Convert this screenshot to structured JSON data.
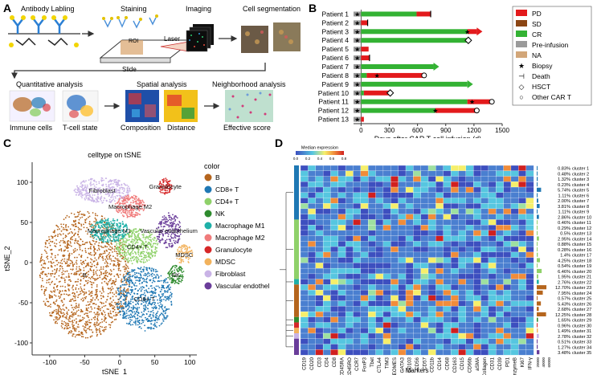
{
  "panels": {
    "A": {
      "letter": "A",
      "steps": [
        {
          "label": "Antibody Labling"
        },
        {
          "label": "Staining"
        },
        {
          "label": "Imaging"
        },
        {
          "label": "Cell segmentation"
        }
      ],
      "roi_label": "ROI",
      "laser_label": "Laser",
      "slide_label": "Slide",
      "analyses": [
        {
          "label": "Quantitative analysis",
          "subs": [
            "Immune cells",
            "T-cell state"
          ]
        },
        {
          "label": "Spatial analysis",
          "subs": [
            "Composition",
            "Distance"
          ]
        },
        {
          "label": "Neighborhood analysis",
          "subs": [
            "Effective score"
          ]
        }
      ]
    },
    "B": {
      "letter": "B",
      "xlabel": "Days after CAR T-cell infusion (d)",
      "legend": [
        {
          "name": "PD",
          "color": "#e31a1c"
        },
        {
          "name": "SD",
          "color": "#8b4513"
        },
        {
          "name": "CR",
          "color": "#33b233"
        },
        {
          "name": "Pre-infusion",
          "color": "#9a9a9a"
        },
        {
          "name": "NA",
          "color": "#d2a679"
        },
        {
          "name": "Biopsy",
          "symbol": "★"
        },
        {
          "name": "Death",
          "symbol": "⊣"
        },
        {
          "name": "HSCT",
          "symbol": "◇"
        },
        {
          "name": "Other CAR T",
          "symbol": "○"
        }
      ]
    },
    "C": {
      "letter": "C",
      "legend_title": "color",
      "legend": [
        {
          "name": "B",
          "color": "#b5651d"
        },
        {
          "name": "CD8+ T",
          "color": "#1f78b4"
        },
        {
          "name": "CD4+ T",
          "color": "#8fd16a"
        },
        {
          "name": "NK",
          "color": "#2e8b2e"
        },
        {
          "name": "Macrophage M1",
          "color": "#1fb0a8"
        },
        {
          "name": "Macrophage M2",
          "color": "#f07b7b"
        },
        {
          "name": "Granulocyte",
          "color": "#d62728"
        },
        {
          "name": "MDSC",
          "color": "#f2b25c"
        },
        {
          "name": "Fibroblast",
          "color": "#c9b3e6"
        },
        {
          "name": "Vascular endothelium",
          "color": "#6a3d9a"
        }
      ],
      "cluster_labels": [
        "Granulocyte",
        "Fibroblast",
        "Macrophage M2",
        "Macrophage M1",
        "CD4+ T",
        "Vascular endothelium",
        "MDSC",
        "NK",
        "B",
        "CD8+ T"
      ]
    },
    "D": {
      "letter": "D",
      "colorbar_title": "Median expression",
      "colorbar_ticks": [
        "0.0",
        "0.2",
        "0.4",
        "0.6",
        "0.8"
      ],
      "xlabel": "Markers",
      "ncells_label": "n_cells",
      "ncells_ticks": [
        "20000",
        "40000",
        "60000"
      ],
      "markers": [
        "CD19",
        "CD20",
        "CD3",
        "CD4",
        "CD8",
        "CD45RA",
        "CD45RO",
        "CCR7",
        "FoxP3",
        "Tbet",
        "CTLA4",
        "TIM3",
        "EOMES",
        "GATA3",
        "CD103",
        "CD56",
        "CD57",
        "CD11b",
        "CD14",
        "CD68",
        "CD163",
        "CD15",
        "CD66b",
        "aSMA",
        "Collagen",
        "CD31",
        "CD39",
        "PD1",
        "GranzymeB",
        "Ki67",
        "IFN-γ"
      ],
      "clusters": [
        {
          "pct": "0.83%",
          "name": "cluster 1"
        },
        {
          "pct": "0.48%",
          "name": "cluster 2"
        },
        {
          "pct": "1.32%",
          "name": "cluster 3"
        },
        {
          "pct": "0.23%",
          "name": "cluster 4"
        },
        {
          "pct": "5.74%",
          "name": "cluster 5"
        },
        {
          "pct": "1.11%",
          "name": "cluster 6"
        },
        {
          "pct": "2.00%",
          "name": "cluster 7"
        },
        {
          "pct": "3.81%",
          "name": "cluster 8"
        },
        {
          "pct": "1.11%",
          "name": "cluster 9"
        },
        {
          "pct": "2.86%",
          "name": "cluster 10"
        },
        {
          "pct": "0.46%",
          "name": "cluster 11"
        },
        {
          "pct": "0.29%",
          "name": "cluster 12"
        },
        {
          "pct": "0.5%",
          "name": "cluster 13"
        },
        {
          "pct": "2.95%",
          "name": "cluster 14"
        },
        {
          "pct": "0.88%",
          "name": "cluster 15"
        },
        {
          "pct": "0.28%",
          "name": "cluster 16"
        },
        {
          "pct": "1.4%",
          "name": "cluster 17"
        },
        {
          "pct": "4.25%",
          "name": "cluster 18"
        },
        {
          "pct": "0.54%",
          "name": "cluster 19"
        },
        {
          "pct": "6.46%",
          "name": "cluster 20"
        },
        {
          "pct": "1.95%",
          "name": "cluster 21"
        },
        {
          "pct": "2.76%",
          "name": "cluster 22"
        },
        {
          "pct": "12.70%",
          "name": "cluster 23"
        },
        {
          "pct": "7.95%",
          "name": "cluster 24"
        },
        {
          "pct": "0.57%",
          "name": "cluster 25"
        },
        {
          "pct": "5.43%",
          "name": "cluster 26"
        },
        {
          "pct": "2.68%",
          "name": "cluster 27"
        },
        {
          "pct": "12.25%",
          "name": "cluster 28"
        },
        {
          "pct": "1.65%",
          "name": "cluster 29"
        },
        {
          "pct": "0.96%",
          "name": "cluster 30"
        },
        {
          "pct": "1.49%",
          "name": "cluster 31"
        },
        {
          "pct": "2.78%",
          "name": "cluster 32"
        },
        {
          "pct": "0.51%",
          "name": "cluster 33"
        },
        {
          "pct": "1.27%",
          "name": "cluster 34"
        },
        {
          "pct": "3.48%",
          "name": "cluster 35"
        }
      ]
    }
  },
  "chart_data": [
    {
      "type": "bar",
      "panel": "B",
      "orientation": "horizontal",
      "xlabel": "Days after CAR T-cell infusion (d)",
      "xticks": [
        0,
        300,
        600,
        900,
        1200,
        1500
      ],
      "xlim": [
        -80,
        1500
      ],
      "categories": [
        "Patient 1",
        "Patient 2",
        "Patient 3",
        "Patient 4",
        "Patient 5",
        "Patient 6",
        "Patient 7",
        "Patient 8",
        "Patient 9",
        "Patient 10",
        "Patient 11",
        "Patient 12",
        "Patient 13"
      ],
      "segments": [
        [
          {
            "status": "CR",
            "start": 0,
            "end": 590
          },
          {
            "status": "PD",
            "start": 590,
            "end": 740
          }
        ],
        [
          {
            "status": "PD",
            "start": 0,
            "end": 70
          }
        ],
        [
          {
            "status": "CR",
            "start": 0,
            "end": 1130
          },
          {
            "status": "PD",
            "start": 1130,
            "end": 1230
          }
        ],
        [
          {
            "status": "CR",
            "start": 0,
            "end": 1140
          }
        ],
        [
          {
            "status": "PD",
            "start": 0,
            "end": 80
          }
        ],
        [
          {
            "status": "PD",
            "start": 0,
            "end": 90
          }
        ],
        [
          {
            "status": "CR",
            "start": 0,
            "end": 770
          }
        ],
        [
          {
            "status": "CR",
            "start": 0,
            "end": 60
          },
          {
            "status": "PD",
            "start": 60,
            "end": 670
          }
        ],
        [
          {
            "status": "CR",
            "start": 0,
            "end": 1130
          }
        ],
        [
          {
            "status": "CR",
            "start": 0,
            "end": 30
          },
          {
            "status": "PD",
            "start": 30,
            "end": 310
          }
        ],
        [
          {
            "status": "CR",
            "start": 0,
            "end": 1130
          },
          {
            "status": "PD",
            "start": 1130,
            "end": 1390
          }
        ],
        [
          {
            "status": "CR",
            "start": 0,
            "end": 790
          },
          {
            "status": "PD",
            "start": 790,
            "end": 1230
          }
        ],
        [
          {
            "status": "PD",
            "start": 0,
            "end": 30
          }
        ]
      ],
      "pre_infusion": true,
      "markers": [
        {
          "patient": "Patient 1",
          "type": "Biopsy",
          "x": -40
        },
        {
          "patient": "Patient 1",
          "type": "Death",
          "x": 740
        },
        {
          "patient": "Patient 2",
          "type": "Biopsy",
          "x": -40
        },
        {
          "patient": "Patient 2",
          "type": "Death",
          "x": 70
        },
        {
          "patient": "Patient 3",
          "type": "Biopsy",
          "x": -40
        },
        {
          "patient": "Patient 3",
          "type": "Biopsy",
          "x": 1130
        },
        {
          "patient": "Patient 4",
          "type": "Biopsy",
          "x": -40
        },
        {
          "patient": "Patient 4",
          "type": "HSCT",
          "x": 1140
        },
        {
          "patient": "Patient 5",
          "type": "Biopsy",
          "x": -40
        },
        {
          "patient": "Patient 6",
          "type": "Biopsy",
          "x": -40
        },
        {
          "patient": "Patient 6",
          "type": "Death",
          "x": 90
        },
        {
          "patient": "Patient 7",
          "type": "Biopsy",
          "x": -40
        },
        {
          "patient": "Patient 8",
          "type": "Biopsy",
          "x": -40
        },
        {
          "patient": "Patient 8",
          "type": "Biopsy",
          "x": 170
        },
        {
          "patient": "Patient 8",
          "type": "Other CAR T",
          "x": 670
        },
        {
          "patient": "Patient 9",
          "type": "Biopsy",
          "x": -40
        },
        {
          "patient": "Patient 10",
          "type": "Biopsy",
          "x": -40
        },
        {
          "patient": "Patient 10",
          "type": "HSCT",
          "x": 310
        },
        {
          "patient": "Patient 11",
          "type": "Biopsy",
          "x": -40
        },
        {
          "patient": "Patient 11",
          "type": "Biopsy",
          "x": 1180
        },
        {
          "patient": "Patient 11",
          "type": "Other CAR T",
          "x": 1390
        },
        {
          "patient": "Patient 12",
          "type": "Biopsy",
          "x": -40
        },
        {
          "patient": "Patient 12",
          "type": "Biopsy",
          "x": 790
        },
        {
          "patient": "Patient 12",
          "type": "Other CAR T",
          "x": 1230
        },
        {
          "patient": "Patient 13",
          "type": "Biopsy",
          "x": -40
        }
      ],
      "arrows": [
        "Patient 3",
        "Patient 7",
        "Patient 9"
      ]
    },
    {
      "type": "scatter",
      "panel": "C",
      "title": "celltype on tSNE",
      "xlabel": "tSNE_1",
      "ylabel": "tSNE_2",
      "xticks": [
        -100,
        -50,
        0,
        50,
        100
      ],
      "yticks": [
        -100,
        -50,
        0,
        50,
        100
      ],
      "xlim": [
        -125,
        110
      ],
      "ylim": [
        -115,
        125
      ],
      "legend_title": "color",
      "clusters": [
        {
          "name": "B",
          "cx": -50,
          "cy": -15,
          "rx": 65,
          "ry": 80,
          "n": 1500
        },
        {
          "name": "CD8+ T",
          "cx": 35,
          "cy": -45,
          "rx": 40,
          "ry": 40,
          "n": 700
        },
        {
          "name": "CD4+ T",
          "cx": 25,
          "cy": 20,
          "rx": 30,
          "ry": 22,
          "n": 400
        },
        {
          "name": "NK",
          "cx": 80,
          "cy": -15,
          "rx": 12,
          "ry": 12,
          "n": 100
        },
        {
          "name": "Macrophage M1",
          "cx": -15,
          "cy": 40,
          "rx": 28,
          "ry": 15,
          "n": 300
        },
        {
          "name": "Macrophage M2",
          "cx": 15,
          "cy": 70,
          "rx": 22,
          "ry": 14,
          "n": 250
        },
        {
          "name": "Granulocyte",
          "cx": 65,
          "cy": 95,
          "rx": 10,
          "ry": 10,
          "n": 90
        },
        {
          "name": "MDSC",
          "cx": 92,
          "cy": 10,
          "rx": 12,
          "ry": 12,
          "n": 90
        },
        {
          "name": "Fibroblast",
          "cx": -25,
          "cy": 90,
          "rx": 40,
          "ry": 16,
          "n": 350
        },
        {
          "name": "Vascular endothelium",
          "cx": 70,
          "cy": 40,
          "rx": 18,
          "ry": 22,
          "n": 200
        }
      ]
    },
    {
      "type": "heatmap",
      "panel": "D",
      "xlabel": "Markers",
      "colorbar_title": "Median expression",
      "colorbar_range": [
        0,
        0.8
      ],
      "rows": 35,
      "columns": 31,
      "row_groups": [
        {
          "color": "#1f78b4",
          "count": 10
        },
        {
          "color": "#8fd16a",
          "count": 11
        },
        {
          "color": "#1fb0a8",
          "count": 1
        },
        {
          "color": "#b5651d",
          "count": 6
        },
        {
          "color": "#2e8b2e",
          "count": 1
        },
        {
          "color": "#d62728",
          "count": 1
        },
        {
          "color": "#f2b25c",
          "count": 1
        },
        {
          "color": "#c9b3e6",
          "count": 1
        },
        {
          "color": "#6a3d9a",
          "count": 3
        }
      ],
      "n_cells": [
        800,
        480,
        1300,
        230,
        5700,
        1100,
        2000,
        3800,
        1100,
        2860,
        460,
        290,
        500,
        2950,
        880,
        280,
        1400,
        4250,
        540,
        6460,
        1950,
        2760,
        12700,
        7950,
        570,
        5430,
        2680,
        12250,
        1650,
        960,
        1490,
        2780,
        510,
        1270,
        3480
      ]
    }
  ]
}
